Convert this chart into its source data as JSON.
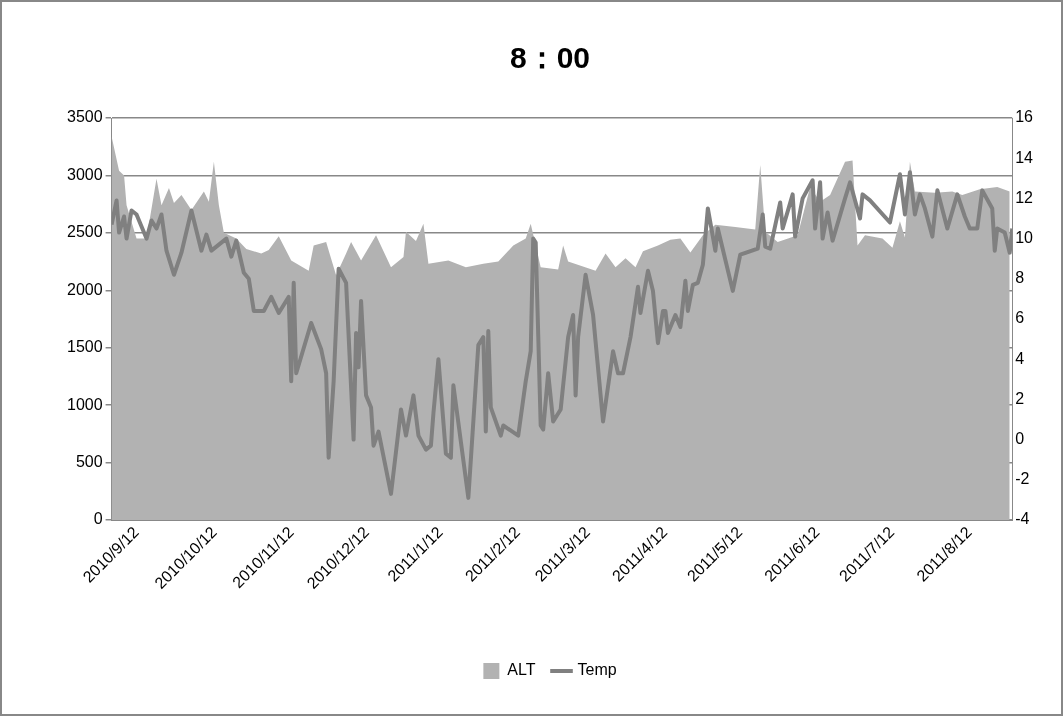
{
  "chart_data": {
    "type": "area",
    "title": "8：00",
    "legend": "bottom",
    "grid": "y",
    "xlim": [
      "2010-09-12",
      "2011-09-08"
    ],
    "xticks": [
      {
        "value": "2010-09-12",
        "label": "2010/9/12"
      },
      {
        "value": "2010-10-12",
        "label": "2010/10/12"
      },
      {
        "value": "2010-11-12",
        "label": "2010/11/12"
      },
      {
        "value": "2010-12-12",
        "label": "2010/12/12"
      },
      {
        "value": "2011-01-12",
        "label": "2011/1/12"
      },
      {
        "value": "2011-02-12",
        "label": "2011/2/12"
      },
      {
        "value": "2011-03-12",
        "label": "2011/3/12"
      },
      {
        "value": "2011-04-12",
        "label": "2011/4/12"
      },
      {
        "value": "2011-05-12",
        "label": "2011/5/12"
      },
      {
        "value": "2011-06-12",
        "label": "2011/6/12"
      },
      {
        "value": "2011-07-12",
        "label": "2011/7/12"
      },
      {
        "value": "2011-08-12",
        "label": "2011/8/12"
      }
    ],
    "ylim": [
      0,
      3500
    ],
    "yticks": [
      0,
      500,
      1000,
      1500,
      2000,
      2500,
      3000,
      3500
    ],
    "y2lim": [
      -4,
      16
    ],
    "y2ticks": [
      -4,
      -2,
      0,
      2,
      4,
      6,
      8,
      10,
      12,
      14,
      16
    ],
    "series": [
      {
        "name": "ALT",
        "type": "area",
        "color": "#b2b2b2",
        "x": [
          "2010-09-12",
          "2010-09-15",
          "2010-09-17",
          "2010-09-18",
          "2010-09-22",
          "2010-09-26",
          "2010-09-30",
          "2010-10-02",
          "2010-10-05",
          "2010-10-07",
          "2010-10-10",
          "2010-10-14",
          "2010-10-19",
          "2010-10-21",
          "2010-10-23",
          "2010-10-25",
          "2010-10-27",
          "2010-11-01",
          "2010-11-05",
          "2010-11-11",
          "2010-11-14",
          "2010-11-18",
          "2010-11-23",
          "2010-11-30",
          "2010-12-02",
          "2010-12-07",
          "2010-12-11",
          "2010-12-15",
          "2010-12-17",
          "2010-12-21",
          "2010-12-27",
          "2011-01-02",
          "2011-01-07",
          "2011-01-08",
          "2011-01-12",
          "2011-01-15",
          "2011-01-17",
          "2011-01-25",
          "2011-02-01",
          "2011-02-08",
          "2011-02-14",
          "2011-02-20",
          "2011-02-25",
          "2011-02-27",
          "2011-03-03",
          "2011-03-10",
          "2011-03-12",
          "2011-03-14",
          "2011-03-25",
          "2011-03-29",
          "2011-04-02",
          "2011-04-06",
          "2011-04-10",
          "2011-04-13",
          "2011-04-19",
          "2011-04-24",
          "2011-04-28",
          "2011-05-02",
          "2011-05-07",
          "2011-05-12",
          "2011-05-20",
          "2011-05-28",
          "2011-05-30",
          "2011-06-01",
          "2011-06-06",
          "2011-06-14",
          "2011-06-19",
          "2011-06-23",
          "2011-06-27",
          "2011-07-03",
          "2011-07-06",
          "2011-07-08",
          "2011-07-11",
          "2011-07-18",
          "2011-07-22",
          "2011-07-25",
          "2011-07-27",
          "2011-07-29",
          "2011-07-31",
          "2011-08-08",
          "2011-08-15",
          "2011-08-19",
          "2011-08-26",
          "2011-09-02",
          "2011-09-07"
        ],
        "values": [
          3340,
          3040,
          3000,
          2740,
          2450,
          2450,
          2970,
          2740,
          2890,
          2760,
          2830,
          2700,
          2860,
          2770,
          3120,
          2740,
          2500,
          2450,
          2360,
          2320,
          2350,
          2470,
          2260,
          2170,
          2390,
          2420,
          2130,
          2320,
          2420,
          2260,
          2480,
          2200,
          2290,
          2510,
          2430,
          2580,
          2230,
          2260,
          2200,
          2230,
          2250,
          2390,
          2450,
          2580,
          2200,
          2180,
          2390,
          2250,
          2170,
          2320,
          2200,
          2280,
          2200,
          2340,
          2390,
          2440,
          2450,
          2330,
          2480,
          2570,
          2550,
          2530,
          3090,
          2510,
          2420,
          2480,
          2900,
          2770,
          2830,
          3120,
          3130,
          2390,
          2480,
          2450,
          2370,
          2600,
          2460,
          3120,
          2860,
          2850,
          2860,
          2830,
          2880,
          2900,
          2860
        ]
      },
      {
        "name": "Temp",
        "type": "line",
        "axis": "y2",
        "color": "#808080",
        "x": [
          "2010-09-12",
          "2010-09-14",
          "2010-09-15",
          "2010-09-17",
          "2010-09-18",
          "2010-09-20",
          "2010-09-22",
          "2010-09-26",
          "2010-09-28",
          "2010-09-30",
          "2010-10-02",
          "2010-10-04",
          "2010-10-07",
          "2010-10-10",
          "2010-10-14",
          "2010-10-18",
          "2010-10-20",
          "2010-10-22",
          "2010-10-28",
          "2010-10-30",
          "2010-11-01",
          "2010-11-04",
          "2010-11-06",
          "2010-11-08",
          "2010-11-12",
          "2010-11-15",
          "2010-11-18",
          "2010-11-22",
          "2010-11-23",
          "2010-11-24",
          "2010-11-25",
          "2010-12-01",
          "2010-12-05",
          "2010-12-07",
          "2010-12-08",
          "2010-12-10",
          "2010-12-12",
          "2010-12-15",
          "2010-12-18",
          "2010-12-19",
          "2010-12-20",
          "2010-12-21",
          "2010-12-23",
          "2010-12-25",
          "2010-12-26",
          "2010-12-28",
          "2011-01-02",
          "2011-01-06",
          "2011-01-08",
          "2011-01-11",
          "2011-01-13",
          "2011-01-16",
          "2011-01-18",
          "2011-01-19",
          "2011-01-21",
          "2011-01-24",
          "2011-01-26",
          "2011-01-27",
          "2011-02-02",
          "2011-02-06",
          "2011-02-08",
          "2011-02-09",
          "2011-02-10",
          "2011-02-11",
          "2011-02-15",
          "2011-02-16",
          "2011-02-22",
          "2011-02-25",
          "2011-02-27",
          "2011-02-28",
          "2011-03-01",
          "2011-03-03",
          "2011-03-04",
          "2011-03-06",
          "2011-03-08",
          "2011-03-11",
          "2011-03-14",
          "2011-03-16",
          "2011-03-17",
          "2011-03-18",
          "2011-03-21",
          "2011-03-24",
          "2011-03-28",
          "2011-04-01",
          "2011-04-03",
          "2011-04-05",
          "2011-04-08",
          "2011-04-11",
          "2011-04-12",
          "2011-04-15",
          "2011-04-17",
          "2011-04-19",
          "2011-04-21",
          "2011-04-22",
          "2011-04-23",
          "2011-04-26",
          "2011-04-28",
          "2011-04-30",
          "2011-05-01",
          "2011-05-03",
          "2011-05-05",
          "2011-05-07",
          "2011-05-09",
          "2011-05-12",
          "2011-05-13",
          "2011-05-19",
          "2011-05-22",
          "2011-05-29",
          "2011-05-31",
          "2011-06-01",
          "2011-06-03",
          "2011-06-07",
          "2011-06-08",
          "2011-06-12",
          "2011-06-13",
          "2011-06-16",
          "2011-06-20",
          "2011-06-21",
          "2011-06-23",
          "2011-06-24",
          "2011-06-26",
          "2011-06-28",
          "2011-07-03",
          "2011-07-05",
          "2011-07-09",
          "2011-07-10",
          "2011-07-13",
          "2011-07-21",
          "2011-07-25",
          "2011-07-27",
          "2011-07-29",
          "2011-07-31",
          "2011-08-02",
          "2011-08-04",
          "2011-08-07",
          "2011-08-09",
          "2011-08-13",
          "2011-08-17",
          "2011-08-20",
          "2011-08-22",
          "2011-08-25",
          "2011-08-27",
          "2011-08-31",
          "2011-09-01",
          "2011-09-02",
          "2011-09-05",
          "2011-09-07",
          "2011-09-08"
        ],
        "values": [
          10.7,
          11.9,
          10.3,
          11.1,
          10.0,
          11.4,
          11.2,
          10.0,
          10.9,
          10.5,
          11.2,
          9.4,
          8.2,
          9.3,
          11.4,
          9.4,
          10.2,
          9.4,
          10.0,
          9.1,
          9.9,
          8.3,
          8.0,
          6.4,
          6.4,
          7.1,
          6.3,
          7.1,
          2.9,
          7.8,
          3.3,
          5.8,
          4.5,
          3.3,
          -0.9,
          2.9,
          8.5,
          7.8,
          0.0,
          5.3,
          3.6,
          6.9,
          2.2,
          1.6,
          -0.3,
          0.4,
          -2.7,
          1.5,
          0.2,
          2.2,
          0.2,
          -0.5,
          -0.3,
          1.3,
          4.0,
          -0.7,
          -0.9,
          2.7,
          -2.9,
          4.7,
          5.1,
          0.4,
          5.4,
          1.6,
          0.2,
          0.7,
          0.2,
          2.9,
          4.4,
          10.0,
          9.8,
          0.7,
          0.5,
          3.3,
          0.9,
          1.5,
          5.1,
          6.2,
          2.2,
          5.1,
          8.2,
          6.2,
          0.9,
          4.4,
          3.3,
          3.3,
          5.1,
          7.6,
          6.3,
          8.4,
          7.4,
          4.8,
          6.4,
          6.4,
          5.3,
          6.2,
          5.6,
          7.9,
          6.4,
          7.7,
          7.8,
          8.7,
          11.5,
          9.4,
          10.5,
          7.4,
          9.2,
          9.5,
          11.2,
          9.6,
          9.5,
          11.8,
          10.5,
          12.2,
          10.1,
          12.0,
          12.9,
          10.5,
          12.8,
          10.0,
          11.3,
          9.9,
          12.0,
          12.8,
          11.0,
          12.2,
          11.9,
          10.8,
          13.2,
          11.2,
          13.3,
          11.2,
          12.2,
          11.5,
          10.1,
          12.4,
          10.5,
          12.2,
          11.1,
          10.5,
          10.5,
          12.4,
          11.5,
          9.4,
          10.5,
          10.3,
          9.3,
          10.5
        ]
      }
    ]
  }
}
